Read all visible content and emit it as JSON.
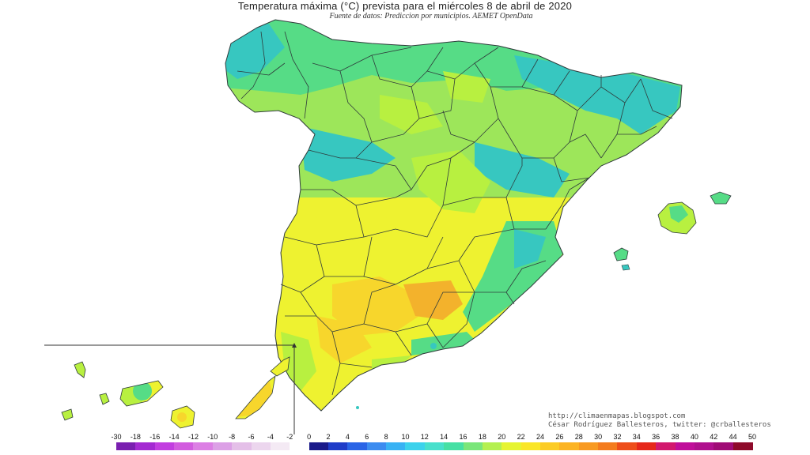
{
  "title": "Temperatura máxima (°C) prevista para el miércoles 8 de abril de 2020",
  "source": "Fuente de datos: Prediccion por municipios. AEMET OpenData",
  "credits": {
    "url": "http://climaenmapas.blogspot.com",
    "author": "César Rodríguez Ballesteros, twitter: @crballesteros"
  },
  "legend": {
    "ticks": [
      "-30",
      "-18",
      "-16",
      "-14",
      "-12",
      "-10",
      "-8",
      "-6",
      "-4",
      "-2",
      "0",
      "2",
      "4",
      "6",
      "8",
      "10",
      "12",
      "14",
      "16",
      "18",
      "20",
      "22",
      "24",
      "26",
      "28",
      "30",
      "32",
      "34",
      "36",
      "38",
      "40",
      "42",
      "44",
      "50"
    ],
    "colors": [
      "#7a1fb0",
      "#a42ad2",
      "#c23ee0",
      "#d25cdf",
      "#dc7fe4",
      "#dca0e6",
      "#e4bfe8",
      "#ecd6ee",
      "#f4eaf4",
      "#ffffff",
      "#1a1a8a",
      "#1f3cc8",
      "#2a64e6",
      "#3c8cf0",
      "#38b2f4",
      "#3cd2ec",
      "#48e0cc",
      "#46e0a4",
      "#7ae67a",
      "#b4f050",
      "#e6f432",
      "#fae628",
      "#fccc26",
      "#fcb424",
      "#f89a22",
      "#f47c1e",
      "#ee4e1a",
      "#e6281a",
      "#d2186e",
      "#c00e9a",
      "#b0108e",
      "#a00c76",
      "#8e0a2a"
    ]
  },
  "map": {
    "region": "Península Ibérica, Baleares y Canarias",
    "colors": {
      "cold": "#37c7c0",
      "cool": "#56dc86",
      "mild": "#b8f040",
      "warm": "#eef230",
      "hot": "#f7d62c",
      "hottest": "#f3b22c",
      "border": "#2f3b3b"
    }
  }
}
